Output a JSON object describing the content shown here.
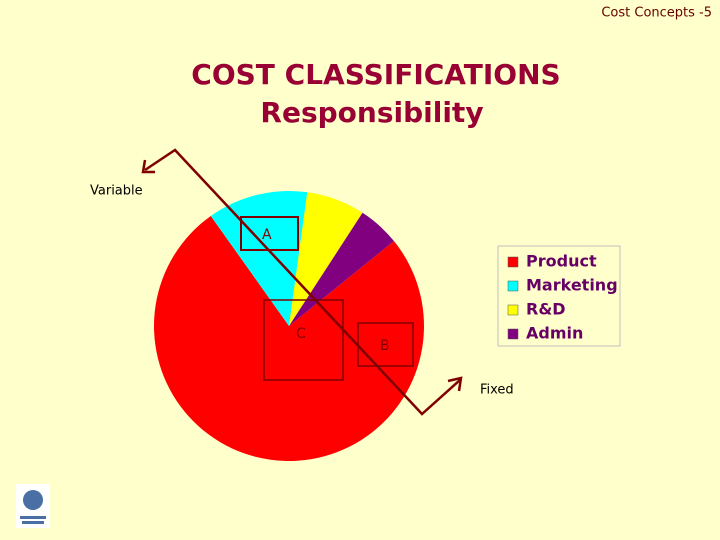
{
  "header": "Cost Concepts  -5",
  "chart_data": {
    "type": "pie",
    "title": "COST CLASSIFICATIONS",
    "subtitle": "Responsibility",
    "categories": [
      "Product",
      "Marketing",
      "R&D",
      "Admin"
    ],
    "values": [
      76,
      12,
      7,
      5
    ],
    "colors": [
      "#ff0000",
      "#00ffff",
      "#ffff00",
      "#800080"
    ],
    "legend": "right",
    "annotations": [
      "Variable",
      "Fixed",
      "A",
      "B",
      "C"
    ]
  }
}
